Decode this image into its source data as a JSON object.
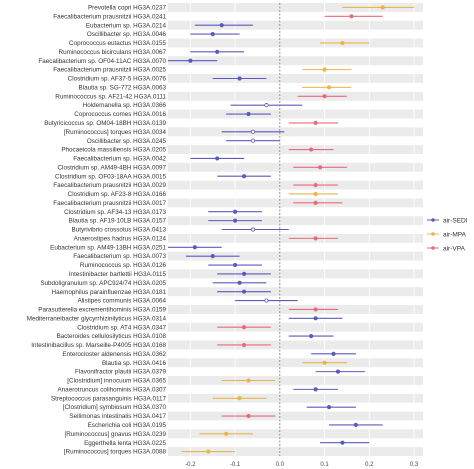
{
  "chart_data": {
    "type": "forest",
    "xlabel": "",
    "ylabel": "",
    "xlim": [
      -0.25,
      0.32
    ],
    "xticks": [
      "-0.2",
      "-0.1",
      "0.0",
      "0.1",
      "0.2",
      "0.3"
    ],
    "reference_line": 0,
    "grid": true,
    "banded_rows": true,
    "legend_position": "right",
    "series": [
      {
        "name": "air-SEDI",
        "color": "#5b5bbd"
      },
      {
        "name": "air-MPA",
        "color": "#e8b64c"
      },
      {
        "name": "air-VPA",
        "color": "#e86a7e"
      }
    ],
    "rows": [
      {
        "label": "Prevotella copri HG3A.0237",
        "series": 1,
        "est": 0.23,
        "lo": 0.14,
        "hi": 0.3,
        "sig": true
      },
      {
        "label": "Faecalibacterium prausnitzii HG3A.0241",
        "series": 2,
        "est": 0.16,
        "lo": 0.1,
        "hi": 0.23,
        "sig": true
      },
      {
        "label": "Eubacterium sp. HG3A.0214",
        "series": 0,
        "est": -0.13,
        "lo": -0.19,
        "hi": -0.06,
        "sig": true
      },
      {
        "label": "Oscillibacter sp. HG3A.0046",
        "series": 0,
        "est": -0.15,
        "lo": -0.2,
        "hi": -0.09,
        "sig": true
      },
      {
        "label": "Coprococcus eutactus HG3A.0155",
        "series": 1,
        "est": 0.14,
        "lo": 0.09,
        "hi": 0.2,
        "sig": true
      },
      {
        "label": "Ruminococcus bicirculans HG3A.0067",
        "series": 0,
        "est": -0.14,
        "lo": -0.2,
        "hi": -0.08,
        "sig": true
      },
      {
        "label": "Faecalibacterium sp. OF04-11AC HG3A.0070",
        "series": 0,
        "est": -0.2,
        "lo": -0.25,
        "hi": -0.14,
        "sig": true
      },
      {
        "label": "Faecalibacterium prausnitzii HG3A.0025",
        "series": 1,
        "est": 0.1,
        "lo": 0.05,
        "hi": 0.16,
        "sig": true
      },
      {
        "label": "Clostridium sp. AF37-5 HG3A.0076",
        "series": 0,
        "est": -0.09,
        "lo": -0.15,
        "hi": -0.03,
        "sig": true
      },
      {
        "label": "Blautia sp. SG-772 HG3A.0063",
        "series": 1,
        "est": 0.11,
        "lo": 0.05,
        "hi": 0.16,
        "sig": true
      },
      {
        "label": "Ruminococcus sp. AF21-42 HG3A.0111",
        "series": 2,
        "est": 0.1,
        "lo": 0.04,
        "hi": 0.15,
        "sig": true
      },
      {
        "label": "Holdemanella sp. HG3A.0366",
        "series": 0,
        "est": -0.03,
        "lo": -0.11,
        "hi": 0.05,
        "sig": false
      },
      {
        "label": "Coprococcus comes HG3A.0016",
        "series": 0,
        "est": -0.07,
        "lo": -0.12,
        "hi": -0.02,
        "sig": true
      },
      {
        "label": "Butyricicoccus sp. OM04-18BH HG3A.0139",
        "series": 2,
        "est": 0.08,
        "lo": 0.02,
        "hi": 0.13,
        "sig": true
      },
      {
        "label": "[Ruminococcus] torques HG3A.0034",
        "series": 0,
        "est": -0.06,
        "lo": -0.13,
        "hi": 0.01,
        "sig": false
      },
      {
        "label": "Oscillibacter sp. HG3A.0245",
        "series": 0,
        "est": -0.06,
        "lo": -0.12,
        "hi": 0.0,
        "sig": false
      },
      {
        "label": "Phocaeicola massiliensis HG3A.0205",
        "series": 2,
        "est": 0.07,
        "lo": 0.02,
        "hi": 0.12,
        "sig": true
      },
      {
        "label": "Faecalibacterium sp. HG3A.0042",
        "series": 0,
        "est": -0.14,
        "lo": -0.2,
        "hi": -0.08,
        "sig": true
      },
      {
        "label": "Clostridium sp. AM49-4BH HG3A.0097",
        "series": 2,
        "est": 0.09,
        "lo": 0.03,
        "hi": 0.15,
        "sig": true
      },
      {
        "label": "Clostridium sp. OF03-18AA HG3A.0015",
        "series": 0,
        "est": -0.08,
        "lo": -0.14,
        "hi": -0.02,
        "sig": true
      },
      {
        "label": "Faecalibacterium prausnitzii HG3A.0029",
        "series": 2,
        "est": 0.08,
        "lo": 0.03,
        "hi": 0.13,
        "sig": true
      },
      {
        "label": "Clostridium sp. AF23-8 HG3A.0166",
        "series": 1,
        "est": 0.08,
        "lo": 0.02,
        "hi": 0.13,
        "sig": true
      },
      {
        "label": "Faecalibacterium prausnitzii HG3A.0017",
        "series": 2,
        "est": 0.08,
        "lo": 0.03,
        "hi": 0.14,
        "sig": true
      },
      {
        "label": "Clostridium sp. AF34-13 HG3A.0173",
        "series": 0,
        "est": -0.1,
        "lo": -0.16,
        "hi": -0.04,
        "sig": true
      },
      {
        "label": "Blautia sp. AF19-10LB HG3A.0157",
        "series": 0,
        "est": -0.1,
        "lo": -0.16,
        "hi": -0.04,
        "sig": true
      },
      {
        "label": "Butyrivibrio crossotus HG3A.0413",
        "series": 0,
        "est": -0.06,
        "lo": -0.13,
        "hi": 0.02,
        "sig": false
      },
      {
        "label": "Anaerostipes hadrus HG3A.0124",
        "series": 2,
        "est": 0.08,
        "lo": 0.02,
        "hi": 0.13,
        "sig": true
      },
      {
        "label": "Eubacterium sp. AM49-13BH HG3A.0251",
        "series": 0,
        "est": -0.19,
        "lo": -0.25,
        "hi": -0.13,
        "sig": true
      },
      {
        "label": "Faecalibacterium sp. HG3A.0073",
        "series": 0,
        "est": -0.15,
        "lo": -0.21,
        "hi": -0.09,
        "sig": true
      },
      {
        "label": "Ruminococcus sp. HG3A.0126",
        "series": 0,
        "est": -0.1,
        "lo": -0.16,
        "hi": -0.04,
        "sig": true
      },
      {
        "label": "Intestinibacter bartlettii HG3A.0115",
        "series": 0,
        "est": -0.08,
        "lo": -0.14,
        "hi": -0.02,
        "sig": true
      },
      {
        "label": "Subdoligranulum sp. APC924/74 HG3A.0205",
        "series": 0,
        "est": -0.09,
        "lo": -0.15,
        "hi": -0.03,
        "sig": true
      },
      {
        "label": "Haemophilus parainfluenzae HG3A.0181",
        "series": 0,
        "est": -0.08,
        "lo": -0.14,
        "hi": -0.02,
        "sig": true
      },
      {
        "label": "Alistipes communis HG3A.0064",
        "series": 0,
        "est": -0.03,
        "lo": -0.1,
        "hi": 0.04,
        "sig": false
      },
      {
        "label": "Parasutterella excrementihominis HG3A.0159",
        "series": 2,
        "est": 0.08,
        "lo": 0.02,
        "hi": 0.13,
        "sig": true
      },
      {
        "label": "Mediterraneibacter glycyrrhizinilyticus HG3A.0314",
        "series": 0,
        "est": 0.08,
        "lo": 0.02,
        "hi": 0.14,
        "sig": true
      },
      {
        "label": "Clostridium sp. AT4 HG3A.0347",
        "series": 2,
        "est": -0.08,
        "lo": -0.14,
        "hi": -0.02,
        "sig": true
      },
      {
        "label": "Bacteroides cellulosilyticus HG3A.0108",
        "series": 0,
        "est": 0.07,
        "lo": 0.02,
        "hi": 0.12,
        "sig": true
      },
      {
        "label": "Intestinibacillus sp. Marseille-P4005 HG3A.0168",
        "series": 2,
        "est": -0.08,
        "lo": -0.14,
        "hi": -0.02,
        "sig": true
      },
      {
        "label": "Enterocloster aldenensis HG3A.0362",
        "series": 0,
        "est": 0.12,
        "lo": 0.07,
        "hi": 0.17,
        "sig": true
      },
      {
        "label": "Blautia sp. HG3A.0416",
        "series": 1,
        "est": 0.1,
        "lo": 0.05,
        "hi": 0.15,
        "sig": true
      },
      {
        "label": "Flavonifractor plautii HG3A.0379",
        "series": 0,
        "est": 0.13,
        "lo": 0.08,
        "hi": 0.19,
        "sig": true
      },
      {
        "label": "[Clostridium] innocuum HG3A.0365",
        "series": 1,
        "est": -0.07,
        "lo": -0.13,
        "hi": -0.01,
        "sig": true
      },
      {
        "label": "Anaerotruncus colihominis HG3A.0307",
        "series": 0,
        "est": 0.08,
        "lo": 0.03,
        "hi": 0.13,
        "sig": true
      },
      {
        "label": "Streptococcus parasanguinis HG3A.0117",
        "series": 1,
        "est": -0.09,
        "lo": -0.15,
        "hi": -0.03,
        "sig": true
      },
      {
        "label": "[Clostridium] symbiosum HG3A.0370",
        "series": 0,
        "est": 0.11,
        "lo": 0.06,
        "hi": 0.17,
        "sig": true
      },
      {
        "label": "Sellimonas intestinalis HG3A.0417",
        "series": 2,
        "est": -0.07,
        "lo": -0.13,
        "hi": -0.01,
        "sig": true
      },
      {
        "label": "Escherichia coli HG3A.0195",
        "series": 0,
        "est": 0.17,
        "lo": 0.11,
        "hi": 0.23,
        "sig": true
      },
      {
        "label": "[Ruminococcus] gnavus HG3A.0239",
        "series": 1,
        "est": -0.12,
        "lo": -0.18,
        "hi": -0.06,
        "sig": true
      },
      {
        "label": "Eggerthella lenta HG3A.0225",
        "series": 0,
        "est": 0.14,
        "lo": 0.09,
        "hi": 0.2,
        "sig": true
      },
      {
        "label": "[Ruminococcus] torques HG3A.0088",
        "series": 1,
        "est": -0.16,
        "lo": -0.22,
        "hi": -0.1,
        "sig": true
      }
    ]
  }
}
